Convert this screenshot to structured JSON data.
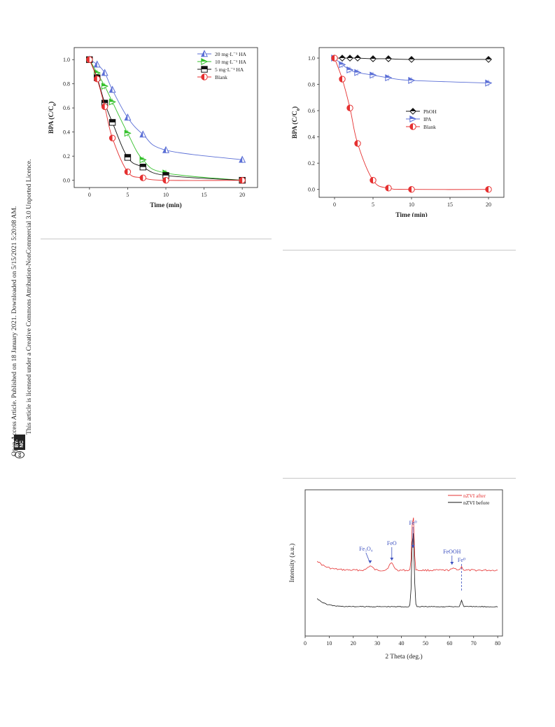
{
  "sidebar": {
    "line1": "Open Access Article. Published on 18 January 2021. Downloaded on 5/15/2021 5:20:08 AM.",
    "line2": "This article is licensed under a Creative Commons Attribution-NonCommercial 3.0 Unported Licence.",
    "badge_cc": "cc",
    "badge_text": "BY-NC"
  },
  "chart_data": [
    {
      "type": "line",
      "xlabel": "Time (min)",
      "ylabel": "BPA (C/C0)",
      "xlim": [
        -2,
        22
      ],
      "ylim": [
        -0.06,
        1.1
      ],
      "xticks": [
        0,
        5,
        10,
        15,
        20
      ],
      "yticks": [
        0.0,
        0.2,
        0.4,
        0.6,
        0.8,
        1.0
      ],
      "legend_position": "top-right",
      "series": [
        {
          "name": "20 mg·L⁻¹ HA",
          "color": "#5b6fd6",
          "marker": "triangle-up",
          "x": [
            0,
            1,
            2,
            3,
            5,
            7,
            10,
            20
          ],
          "y": [
            1.0,
            0.96,
            0.89,
            0.75,
            0.52,
            0.38,
            0.25,
            0.17
          ]
        },
        {
          "name": "10 mg·L⁻¹ HA",
          "color": "#33c02a",
          "marker": "triangle-right",
          "x": [
            0,
            1,
            2,
            3,
            5,
            7,
            10,
            20
          ],
          "y": [
            1.0,
            0.89,
            0.78,
            0.65,
            0.39,
            0.17,
            0.06,
            0.0
          ]
        },
        {
          "name": "5 mg·L⁻¹ HA",
          "color": "#111111",
          "marker": "square",
          "x": [
            0,
            1,
            2,
            3,
            5,
            7,
            10,
            20
          ],
          "y": [
            1.0,
            0.85,
            0.64,
            0.48,
            0.19,
            0.11,
            0.04,
            0.0
          ]
        },
        {
          "name": "Blank",
          "color": "#e53030",
          "marker": "circle",
          "x": [
            0,
            1,
            2,
            3,
            5,
            7,
            10,
            20
          ],
          "y": [
            1.0,
            0.84,
            0.61,
            0.35,
            0.07,
            0.02,
            0.0,
            0.0
          ]
        }
      ]
    },
    {
      "type": "line",
      "xlabel": "Time (min)",
      "ylabel": "BPA (C/C0)",
      "xlim": [
        -2,
        22
      ],
      "ylim": [
        -0.06,
        1.08
      ],
      "xticks": [
        0,
        5,
        10,
        15,
        20
      ],
      "yticks": [
        0.0,
        0.2,
        0.4,
        0.6,
        0.8,
        1.0
      ],
      "legend_position": "center-left",
      "series": [
        {
          "name": "PhOH",
          "color": "#111111",
          "marker": "diamond",
          "x": [
            0,
            1,
            2,
            3,
            5,
            7,
            10,
            20
          ],
          "y": [
            1.0,
            1.0,
            1.0,
            1.0,
            0.995,
            0.995,
            0.99,
            0.99
          ]
        },
        {
          "name": "IPA",
          "color": "#5b6fd6",
          "marker": "triangle-right",
          "x": [
            0,
            1,
            2,
            3,
            5,
            7,
            10,
            20
          ],
          "y": [
            1.0,
            0.95,
            0.91,
            0.89,
            0.87,
            0.85,
            0.83,
            0.81
          ]
        },
        {
          "name": "Blank",
          "color": "#e53030",
          "marker": "circle",
          "x": [
            0,
            1,
            2,
            3,
            5,
            7,
            10,
            20
          ],
          "y": [
            1.0,
            0.84,
            0.62,
            0.35,
            0.07,
            0.01,
            0.0,
            0.0
          ]
        }
      ]
    },
    {
      "type": "line",
      "xlabel": "2 Theta (deg.)",
      "ylabel": "Intensity (a.u.)",
      "xlim": [
        0,
        82
      ],
      "xticks": [
        0,
        10,
        20,
        30,
        40,
        50,
        60,
        70,
        80
      ],
      "legend_position": "top-right",
      "series": [
        {
          "name": "nZVI after",
          "color": "#e53030"
        },
        {
          "name": "nZVI before",
          "color": "#111111"
        }
      ],
      "annotations": [
        {
          "label": "Fe₃O₄",
          "x": 27
        },
        {
          "label": "FeO",
          "x": 36
        },
        {
          "label": "Fe⁰",
          "x": 44.8
        },
        {
          "label": "FeOOH",
          "x": 61
        },
        {
          "label": "Fe⁰",
          "x": 65
        }
      ]
    }
  ]
}
